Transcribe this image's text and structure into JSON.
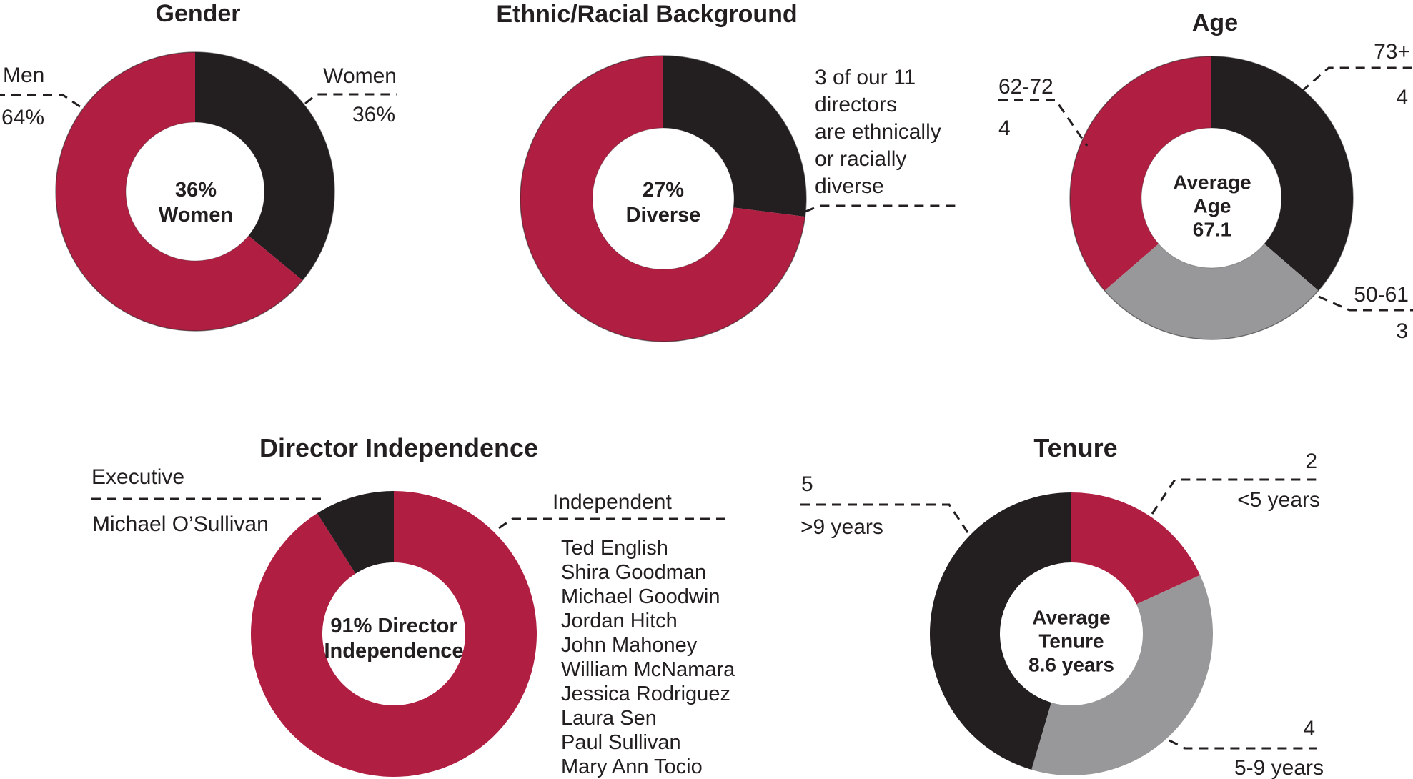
{
  "colors": {
    "red": "#B01E42",
    "black": "#231F20",
    "gray": "#98989A",
    "ink": "#231F20",
    "background": "#FFFFFF"
  },
  "chart_data": [
    {
      "id": "gender",
      "type": "donut",
      "title": "Gender",
      "total": 100,
      "unit": "%",
      "center_lines": [
        "36%",
        "Women"
      ],
      "segments": [
        {
          "label": "Women",
          "value": 36,
          "pct_label": "36%",
          "color": "#231F20"
        },
        {
          "label": "Men",
          "value": 64,
          "pct_label": "64%",
          "color": "#B01E42"
        }
      ]
    },
    {
      "id": "ethnic",
      "type": "donut",
      "title": "Ethnic/Racial Background",
      "total": 100,
      "unit": "%",
      "center_lines": [
        "27%",
        "Diverse"
      ],
      "note_lines": [
        "3 of our 11",
        "directors",
        "are ethnically",
        "or racially",
        "diverse"
      ],
      "segments": [
        {
          "label": "Diverse",
          "value": 27,
          "pct_label": "27%",
          "color": "#231F20"
        },
        {
          "label": "",
          "value": 73,
          "color": "#B01E42"
        }
      ]
    },
    {
      "id": "age",
      "type": "donut",
      "title": "Age",
      "total": 11,
      "unit": "directors",
      "center_lines": [
        "Average",
        "Age",
        "67.1"
      ],
      "segments": [
        {
          "label": "73+",
          "value": 4,
          "color": "#231F20"
        },
        {
          "label": "50-61",
          "value": 3,
          "color": "#98989A"
        },
        {
          "label": "62-72",
          "value": 4,
          "color": "#B01E42"
        }
      ]
    },
    {
      "id": "director_independence",
      "type": "donut",
      "title": "Director Independence",
      "total": 100,
      "unit": "%",
      "center_lines": [
        "91% Director",
        "Independence"
      ],
      "segments": [
        {
          "label": "Independent",
          "value": 91,
          "pct_label": "91%",
          "color": "#B01E42",
          "members": [
            "Ted English",
            "Shira Goodman",
            "Michael Goodwin",
            "Jordan Hitch",
            "John Mahoney",
            "William McNamara",
            "Jessica Rodriguez",
            "Laura Sen",
            "Paul Sullivan",
            "Mary Ann Tocio"
          ]
        },
        {
          "label": "Executive",
          "value": 9,
          "pct_label": "9%",
          "color": "#231F20",
          "members": [
            "Michael O’Sullivan"
          ]
        }
      ]
    },
    {
      "id": "tenure",
      "type": "donut",
      "title": "Tenure",
      "total": 11,
      "unit": "directors",
      "center_lines": [
        "Average",
        "Tenure",
        "8.6 years"
      ],
      "segments": [
        {
          "label": "<5 years",
          "value": 2,
          "color": "#B01E42"
        },
        {
          "label": "5-9 years",
          "value": 4,
          "color": "#98989A"
        },
        {
          "label": ">9 years",
          "value": 5,
          "color": "#231F20"
        }
      ]
    }
  ]
}
